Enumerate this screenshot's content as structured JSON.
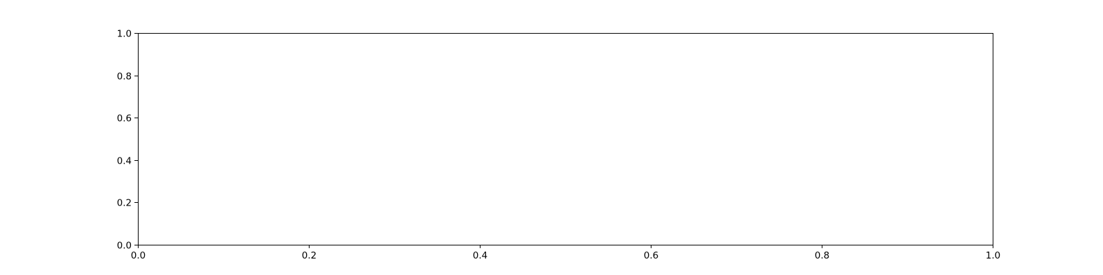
{
  "chart_data": {
    "type": "line",
    "title": "",
    "xlabel": "",
    "ylabel": "",
    "series": [],
    "xlim": [
      0.0,
      1.0
    ],
    "ylim": [
      0.0,
      1.0
    ],
    "xticks": [
      0.0,
      0.2,
      0.4,
      0.6,
      0.8,
      1.0
    ],
    "xtick_labels": [
      "0.0",
      "0.2",
      "0.4",
      "0.6",
      "0.8",
      "1.0"
    ],
    "yticks": [
      0.0,
      0.2,
      0.4,
      0.6,
      0.8,
      1.0
    ],
    "ytick_labels": [
      "0.0",
      "0.2",
      "0.4",
      "0.6",
      "0.8",
      "1.0"
    ],
    "grid": false,
    "legend": "none",
    "colors": {
      "axes": "#000000",
      "background": "#ffffff"
    }
  }
}
